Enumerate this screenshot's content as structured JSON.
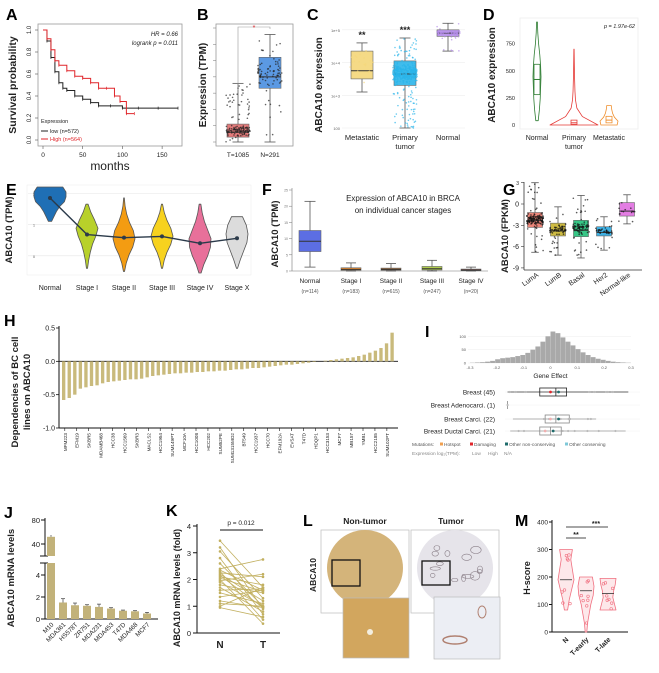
{
  "chart_data": [
    {
      "label": "A",
      "type": "line",
      "title": "",
      "xlabel": "months",
      "ylabel": "Survival probability",
      "xlim": [
        0,
        170
      ],
      "ylim": [
        0,
        1
      ],
      "xticks": [
        "0",
        "50",
        "100",
        "150"
      ],
      "yticks": [
        "0.0",
        "0.2",
        "0.4",
        "0.6",
        "0.8",
        "1.0"
      ],
      "annotations": [
        "HR = 0.66",
        "logrank p = 0.011"
      ],
      "legend": {
        "title": "Expression",
        "placement": "bottom-left"
      },
      "series": [
        {
          "name": "low (n=572)",
          "color": "#222222",
          "x": [
            0,
            5,
            10,
            15,
            20,
            25,
            30,
            40,
            50,
            60,
            70,
            85,
            100,
            120,
            145,
            170
          ],
          "y": [
            1,
            0.9,
            0.75,
            0.62,
            0.52,
            0.47,
            0.45,
            0.4,
            0.37,
            0.34,
            0.31,
            0.31,
            0.29,
            0.29,
            0.29,
            0.29
          ]
        },
        {
          "name": "High (n=564)",
          "color": "#e0262b",
          "x": [
            0,
            5,
            10,
            15,
            20,
            30,
            40,
            50,
            60,
            70,
            80,
            90,
            97,
            105,
            115
          ],
          "y": [
            1,
            0.92,
            0.82,
            0.72,
            0.68,
            0.63,
            0.58,
            0.56,
            0.52,
            0.47,
            0.47,
            0.4,
            0.35,
            0.24,
            0.24
          ]
        }
      ]
    },
    {
      "label": "B",
      "type": "box",
      "ylabel": "Expression (TPM)",
      "ylim": [
        0,
        7
      ],
      "categories": [
        "T=1085",
        "N=291"
      ],
      "boxes": [
        {
          "min": 0,
          "q1": 0.3,
          "median": 0.6,
          "q3": 1.1,
          "max": 3.6,
          "color": "#e06d6d"
        },
        {
          "min": 0,
          "q1": 3.3,
          "median": 4.0,
          "q3": 5.2,
          "max": 6.6,
          "color": "#4a8fe0"
        }
      ],
      "significance": "*"
    },
    {
      "label": "C",
      "type": "box",
      "ylabel": "ABCA10 expression",
      "scale": "log10",
      "ylim": [
        2,
        5.3
      ],
      "yticks": [
        {
          "v": 2,
          "t": "100"
        },
        {
          "v": 3,
          "t": "1e+3"
        },
        {
          "v": 4,
          "t": "1e+4"
        },
        {
          "v": 5,
          "t": "1e+5"
        }
      ],
      "categories": [
        "Metastatic",
        "Primary tumor",
        "Normal"
      ],
      "boxes": [
        {
          "min": 3.1,
          "q1": 3.5,
          "median": 3.75,
          "q3": 4.35,
          "max": 4.6,
          "color": "#f5d77a"
        },
        {
          "min": 2.0,
          "q1": 3.3,
          "median": 3.65,
          "q3": 4.05,
          "max": 4.75,
          "color": "#2bb5ea"
        },
        {
          "min": 4.35,
          "q1": 4.8,
          "median": 4.9,
          "q3": 5.0,
          "max": 5.2,
          "color": "#b38be8"
        }
      ],
      "annotations": [
        "**",
        "***",
        ""
      ]
    },
    {
      "label": "D",
      "type": "violin",
      "ylabel": "ABCA10 expression",
      "ylim": [
        0,
        950
      ],
      "yticks": [
        "0",
        "250",
        "500",
        "750"
      ],
      "categories": [
        "Normal",
        "Primary tumor",
        "Metastatic"
      ],
      "p_value": "p = 1.97e-62",
      "violins": [
        {
          "min": 40,
          "max": 950,
          "q1": 280,
          "median": 420,
          "q3": 560,
          "density": [
            0.3,
            0.6,
            0.8,
            0.9,
            1,
            0.9,
            0.7,
            0.4,
            0.2,
            0.1
          ],
          "color": "#2e7d32",
          "width": 4
        },
        {
          "min": 0,
          "max": 700,
          "q1": 5,
          "median": 20,
          "q3": 45,
          "density": [
            1,
            0.35,
            0.12,
            0.06,
            0.04,
            0.03,
            0.02,
            0.015,
            0.01,
            0.005
          ],
          "color": "#e53935",
          "width": 24
        },
        {
          "min": 0,
          "max": 180,
          "q1": 20,
          "median": 45,
          "q3": 80,
          "density": [
            0.9,
            1,
            0.6,
            0.4,
            0.3,
            0.25
          ],
          "color": "#ef8f2e",
          "width": 9
        }
      ]
    },
    {
      "label": "E",
      "type": "violin",
      "ylabel": "ABCA10 (TPM)",
      "ylim": [
        -0.55,
        2.2
      ],
      "yticks": [
        "0",
        "1",
        "2"
      ],
      "categories": [
        "Normal",
        "Stage I",
        "Stage II",
        "Stage III",
        "Stage IV",
        "Stage X"
      ],
      "violins": [
        {
          "min": 1.1,
          "max": 2.2,
          "mean": 1.85,
          "density": [
            0.1,
            0.25,
            0.4,
            0.6,
            0.9,
            1,
            1,
            0.8
          ],
          "color": "#1f6fb5"
        },
        {
          "min": -0.4,
          "max": 1.65,
          "mean": 0.68,
          "density": [
            0.05,
            0.15,
            0.3,
            0.5,
            0.8,
            1,
            0.7,
            0.35,
            0.1
          ],
          "color": "#b8d12a"
        },
        {
          "min": -0.5,
          "max": 1.85,
          "mean": 0.58,
          "density": [
            0.05,
            0.2,
            0.45,
            0.8,
            1,
            0.85,
            0.5,
            0.25,
            0.1,
            0.03
          ],
          "color": "#f39c12"
        },
        {
          "min": -0.4,
          "max": 1.65,
          "mean": 0.62,
          "density": [
            0.05,
            0.2,
            0.45,
            0.8,
            1,
            0.8,
            0.45,
            0.2,
            0.05
          ],
          "color": "#f7d21e"
        },
        {
          "min": -0.55,
          "max": 1.65,
          "mean": 0.4,
          "density": [
            0.1,
            0.35,
            0.7,
            0.95,
            1,
            0.7,
            0.4,
            0.2,
            0.08
          ],
          "color": "#e8709a"
        },
        {
          "min": -0.4,
          "max": 1.25,
          "mean": 0.56,
          "density": [
            0.05,
            0.3,
            0.6,
            0.9,
            1,
            0.85,
            0.5
          ],
          "color": "#dcdcdc"
        }
      ]
    },
    {
      "label": "F",
      "type": "box",
      "title": "Expression of ABCA10 in BRCA",
      "subtitle": "on individual cancer stages",
      "ylabel": "ABCA10 (TPM)",
      "ylim": [
        0,
        25
      ],
      "yticks": [
        "0",
        "5",
        "10",
        "15",
        "20",
        "25"
      ],
      "categories": [
        "Normal",
        "Stage I",
        "Stage II",
        "Stage III",
        "Stage IV"
      ],
      "counts": [
        "(n=114)",
        "(n=183)",
        "(n=615)",
        "(n=247)",
        "(n=20)"
      ],
      "boxes": [
        {
          "min": 1.2,
          "q1": 6,
          "median": 9.2,
          "q3": 12.5,
          "max": 21.5,
          "color": "#4b5fe0"
        },
        {
          "min": 0,
          "q1": 0.2,
          "median": 0.5,
          "q3": 1.0,
          "max": 2.5,
          "color": "#e4801e"
        },
        {
          "min": 0,
          "q1": 0.2,
          "median": 0.5,
          "q3": 0.9,
          "max": 2.3,
          "color": "#9a5a22"
        },
        {
          "min": 0,
          "q1": 0.3,
          "median": 0.7,
          "q3": 1.4,
          "max": 3.3,
          "color": "#a8c83a"
        },
        {
          "min": 0,
          "q1": 0.1,
          "median": 0.3,
          "q3": 0.6,
          "max": 1.2,
          "color": "#d24a3a"
        }
      ]
    },
    {
      "label": "G",
      "type": "box",
      "ylabel": "ABCA10 (FPKM)",
      "ylim": [
        -10,
        3.5
      ],
      "yticks": [
        "3",
        "0",
        "-3",
        "-6",
        "-9"
      ],
      "categories": [
        "LumA",
        "LumB",
        "Basal",
        "Her2",
        "Normal-like"
      ],
      "boxes": [
        {
          "min": -6.8,
          "q1": -3.3,
          "median": -2.3,
          "q3": -1.2,
          "max": 3,
          "color": "#e8786b"
        },
        {
          "min": -7.2,
          "q1": -4.5,
          "median": -3.8,
          "q3": -2.7,
          "max": -0.4,
          "color": "#c9b42e"
        },
        {
          "min": -7.6,
          "q1": -4.6,
          "median": -3.7,
          "q3": -2.3,
          "max": 1.2,
          "color": "#22c07a"
        },
        {
          "min": -6.5,
          "q1": -4.5,
          "median": -4.0,
          "q3": -3.2,
          "max": -1.8,
          "color": "#2aa8e0"
        },
        {
          "min": -2.8,
          "q1": -1.7,
          "median": -1.0,
          "q3": 0.2,
          "max": 1.3,
          "color": "#e070e0"
        }
      ]
    },
    {
      "label": "H",
      "type": "bar",
      "ylabel": "Dependencies of BC cell",
      "ylabel2": "lines on ABCA10",
      "ylim": [
        -1,
        0.5
      ],
      "yticks": [
        "0.5",
        "0.0",
        "-0.5",
        "-1.0"
      ],
      "color": "#c9ba7c",
      "values": [
        -0.58,
        -0.55,
        -0.5,
        -0.41,
        -0.39,
        -0.37,
        -0.36,
        -0.33,
        -0.31,
        -0.3,
        -0.29,
        -0.28,
        -0.27,
        -0.27,
        -0.26,
        -0.24,
        -0.22,
        -0.21,
        -0.2,
        -0.19,
        -0.18,
        -0.18,
        -0.17,
        -0.17,
        -0.16,
        -0.16,
        -0.15,
        -0.15,
        -0.14,
        -0.14,
        -0.13,
        -0.12,
        -0.12,
        -0.11,
        -0.1,
        -0.1,
        -0.09,
        -0.08,
        -0.07,
        -0.06,
        -0.05,
        -0.05,
        -0.04,
        -0.03,
        -0.02,
        -0.01,
        0.0,
        0.01,
        0.02,
        0.03,
        0.04,
        0.05,
        0.06,
        0.08,
        0.1,
        0.13,
        0.16,
        0.2,
        0.27,
        0.43
      ],
      "tick_labels": [
        "MFM223",
        "EFM19",
        "SKBR5",
        "MDAMB468",
        "HCC38",
        "HCC1569",
        "SKBR3",
        "MACLS2",
        "HCC1954",
        "SUM149PT",
        "MCF10A",
        "HCC1008",
        "HCC202",
        "SUM52PE",
        "SUM1315MO2",
        "BT549",
        "HCC1937",
        "HCC70",
        "EFM192A",
        "EVSAT",
        "T47D",
        "HDQP1",
        "HCC3153",
        "MCF7",
        "MB157",
        "YMB1",
        "HCC2185",
        "SUM102PT"
      ]
    },
    {
      "label": "I",
      "type": "bar",
      "xlabel": "Gene Effect",
      "xlim": [
        -0.3,
        0.3
      ],
      "xticks": [
        "-0.3",
        "-0.2",
        "-0.1",
        "0",
        "0.1",
        "0.2",
        "0.3"
      ],
      "yticks": [
        "0",
        "50",
        "100"
      ],
      "hist_counts": [
        1,
        2,
        3,
        5,
        8,
        14,
        18,
        20,
        22,
        26,
        30,
        38,
        50,
        62,
        80,
        100,
        118,
        112,
        96,
        80,
        66,
        52,
        40,
        30,
        22,
        16,
        12,
        8,
        5,
        3,
        2,
        1
      ],
      "rows": [
        {
          "name": "Breast (45)",
          "min": -0.16,
          "q1": -0.04,
          "median": 0.02,
          "q3": 0.06,
          "max": 0.29
        },
        {
          "name": "Breast Adenocarci. (1)",
          "min": -0.16,
          "q1": -0.16,
          "median": -0.16,
          "q3": -0.16,
          "max": -0.16
        },
        {
          "name": "Breast Carci. (22)",
          "min": -0.14,
          "q1": -0.02,
          "median": 0.02,
          "q3": 0.07,
          "max": 0.17
        },
        {
          "name": "Breast Ductal Carci. (21)",
          "min": -0.15,
          "q1": -0.04,
          "median": 0.0,
          "q3": 0.04,
          "max": 0.28
        }
      ],
      "legend": {
        "mutations_label": "Mutations:",
        "mutations": [
          {
            "t": "Hotspot",
            "c": "#f0a050"
          },
          {
            "t": "Damaging",
            "c": "#e0262b"
          },
          {
            "t": "Other non-conserving",
            "c": "#1e6b6b"
          },
          {
            "t": "Other conserving",
            "c": "#7fc8d8"
          }
        ],
        "expression_label": "Expression log₂(TPM):",
        "expression": [
          "Low",
          "High",
          "N/A"
        ]
      }
    },
    {
      "label": "J",
      "type": "bar",
      "ylabel": "ABCA10 mRNA levels",
      "color": "#c2b27a",
      "categories": [
        "M10",
        "MDA361",
        "HS578T",
        "ZR751",
        "MDA231",
        "MDA453",
        "T47D",
        "MDA468",
        "MCF7"
      ],
      "values": [
        52,
        1.5,
        1.25,
        1.2,
        1.1,
        0.95,
        0.75,
        0.7,
        0.5
      ],
      "errors": [
        3,
        0.35,
        0.2,
        0.1,
        0.25,
        0.08,
        0.06,
        0.06,
        0.1
      ],
      "yticks_lower": [
        "0",
        "2",
        "4"
      ],
      "yticks_upper": [
        "40",
        "80"
      ]
    },
    {
      "label": "K",
      "type": "line",
      "ylabel": "ABCA10 mRNA levels (fold)",
      "ylim": [
        0,
        4
      ],
      "yticks": [
        "0",
        "1",
        "2",
        "3",
        "4"
      ],
      "categories": [
        "N",
        "T"
      ],
      "p_value": "p = 0.012",
      "color": "#c2b060",
      "pairs": [
        [
          3.45,
          1.7
        ],
        [
          3.2,
          0.9
        ],
        [
          3.05,
          1.3
        ],
        [
          2.8,
          0.7
        ],
        [
          2.6,
          1.0
        ],
        [
          2.4,
          2.75
        ],
        [
          2.35,
          1.6
        ],
        [
          2.3,
          0.5
        ],
        [
          2.25,
          2.1
        ],
        [
          2.2,
          1.2
        ],
        [
          2.15,
          0.95
        ],
        [
          2.1,
          1.8
        ],
        [
          2.05,
          1.55
        ],
        [
          2.0,
          0.35
        ],
        [
          1.95,
          2.2
        ],
        [
          1.9,
          1.0
        ],
        [
          1.8,
          1.5
        ],
        [
          1.7,
          0.8
        ],
        [
          1.6,
          1.65
        ],
        [
          1.5,
          1.1
        ],
        [
          1.35,
          1.6
        ],
        [
          1.2,
          0.95
        ],
        [
          1.1,
          1.0
        ],
        [
          1.0,
          1.7
        ],
        [
          0.95,
          0.6
        ]
      ]
    },
    {
      "label": "L",
      "type": "image",
      "row_label": "ABCA10",
      "columns": [
        "Non-tumor",
        "Tumor"
      ]
    },
    {
      "label": "M",
      "type": "violin",
      "ylabel": "H-score",
      "ylim": [
        0,
        400
      ],
      "yticks": [
        "0",
        "100",
        "200",
        "300",
        "400"
      ],
      "categories": [
        "N",
        "T-early",
        "T-late"
      ],
      "color": "#f07080",
      "violins": [
        {
          "min": 80,
          "max": 300,
          "median": 190,
          "density": [
            0.2,
            0.4,
            0.7,
            1,
            0.8,
            0.6,
            0.8
          ]
        },
        {
          "min": 0,
          "max": 200,
          "median": 150,
          "density": [
            0.1,
            0.2,
            0.4,
            0.6,
            0.9,
            1,
            0.8
          ]
        },
        {
          "min": 80,
          "max": 195,
          "median": 140,
          "density": [
            1,
            0.8,
            0.6,
            0.7,
            0.9,
            1
          ]
        }
      ],
      "significance": [
        "**",
        "***"
      ]
    }
  ]
}
